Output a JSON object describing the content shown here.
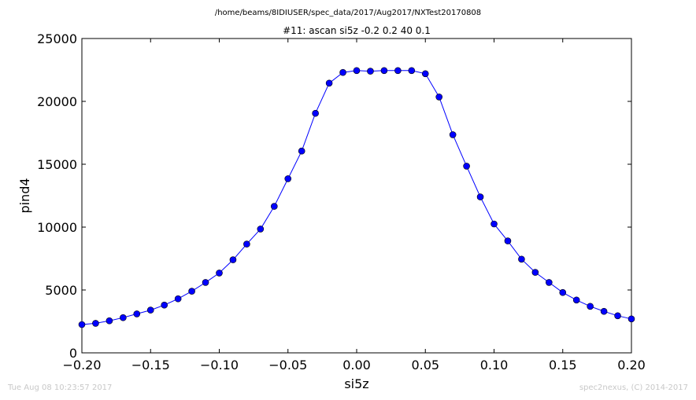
{
  "suptitle": "/home/beams/8IDIUSER/spec_data/2017/Aug2017/NXTest20170808",
  "footer": {
    "timestamp": "Tue Aug 08 10:23:57 2017",
    "credit": "spec2nexus, (C) 2014-2017"
  },
  "colors": {
    "series": "#0000ff",
    "marker_edge": "#000000",
    "footer": "#c8c8c8"
  },
  "chart_data": {
    "type": "line",
    "title": "#11: ascan  si5z -0.2 0.2  40 0.1",
    "xlabel": "si5z",
    "ylabel": "pind4",
    "xlim": [
      -0.2,
      0.2
    ],
    "ylim": [
      0,
      25000
    ],
    "xticks": [
      -0.2,
      -0.15,
      -0.1,
      -0.05,
      0.0,
      0.05,
      0.1,
      0.15,
      0.2
    ],
    "xtick_labels": [
      "−0.20",
      "−0.15",
      "−0.10",
      "−0.05",
      "0.00",
      "0.05",
      "0.10",
      "0.15",
      "0.20"
    ],
    "yticks": [
      0,
      5000,
      10000,
      15000,
      20000,
      25000
    ],
    "ytick_labels": [
      "0",
      "5000",
      "10000",
      "15000",
      "20000",
      "25000"
    ],
    "grid": false,
    "legend": "none",
    "markers": "circle",
    "series": [
      {
        "x": [
          -0.2,
          -0.19,
          -0.18,
          -0.17,
          -0.16,
          -0.15,
          -0.14,
          -0.13,
          -0.12,
          -0.11,
          -0.1,
          -0.09,
          -0.08,
          -0.07,
          -0.06,
          -0.05,
          -0.04,
          -0.03,
          -0.02,
          -0.01,
          0.0,
          0.01,
          0.02,
          0.03,
          0.04,
          0.05,
          0.06,
          0.07,
          0.08,
          0.09,
          0.1,
          0.11,
          0.12,
          0.13,
          0.14,
          0.15,
          0.16,
          0.17,
          0.18,
          0.19,
          0.2
        ],
        "values": [
          2250,
          2350,
          2550,
          2800,
          3100,
          3400,
          3800,
          4300,
          4900,
          5600,
          6350,
          7400,
          8650,
          9850,
          11650,
          13850,
          16050,
          19050,
          21450,
          22300,
          22450,
          22400,
          22450,
          22450,
          22450,
          22200,
          20350,
          17350,
          14850,
          12400,
          10250,
          8900,
          7450,
          6400,
          5600,
          4800,
          4200,
          3700,
          3300,
          2950,
          2700
        ]
      }
    ]
  }
}
